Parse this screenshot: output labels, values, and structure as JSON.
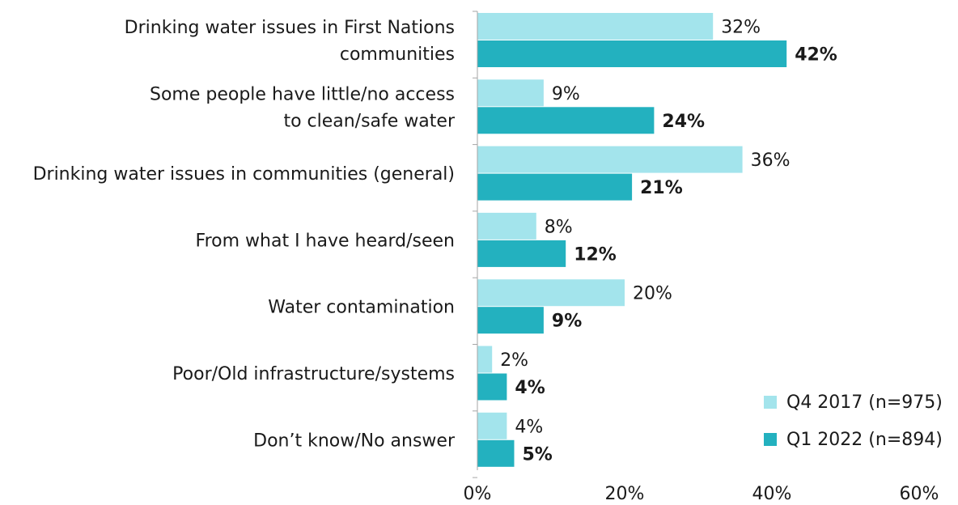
{
  "chart_data": {
    "type": "bar",
    "orientation": "horizontal",
    "categories": [
      [
        "Drinking water issues in First Nations",
        "communities"
      ],
      [
        "Some people have little/no access",
        "to clean/safe water"
      ],
      [
        "Drinking water issues in communities (general)"
      ],
      [
        "From what I have heard/seen"
      ],
      [
        "Water contamination"
      ],
      [
        "Poor/Old infrastructure/systems"
      ],
      [
        "Don’t know/No answer"
      ]
    ],
    "series": [
      {
        "name": "Q4 2017 (n=975)",
        "color": "#a3e4ec",
        "bold_labels": false,
        "values": [
          32,
          9,
          36,
          8,
          20,
          2,
          4
        ]
      },
      {
        "name": "Q1 2022 (n=894)",
        "color": "#23b1bf",
        "bold_labels": true,
        "values": [
          42,
          24,
          21,
          12,
          9,
          4,
          5
        ]
      }
    ],
    "value_suffix": "%",
    "xlim": [
      0,
      60
    ],
    "xticks": [
      0,
      20,
      40,
      60
    ],
    "xtick_labels": [
      "0%",
      "20%",
      "40%",
      "60%"
    ],
    "grid": false,
    "legend_position": "bottom-right"
  }
}
